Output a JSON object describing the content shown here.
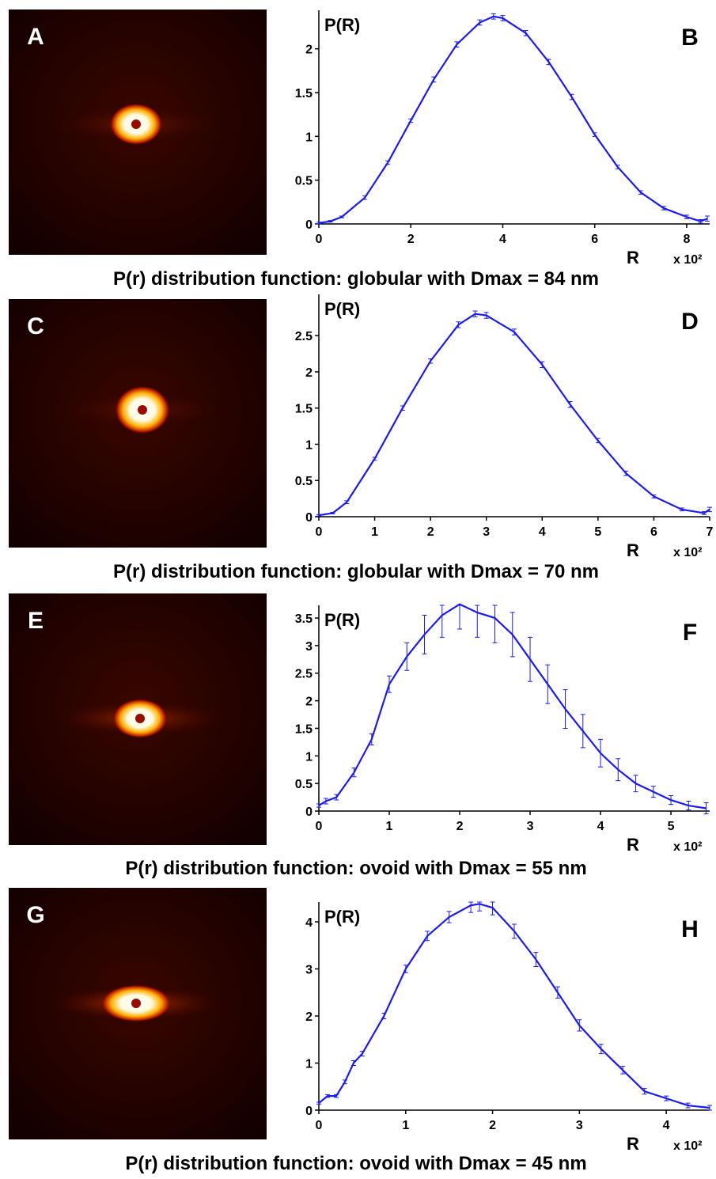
{
  "chart_data": [
    {
      "type": "line",
      "image_label": "A",
      "panel_label": "B",
      "ylabel": "P(R)",
      "xlabel": "R",
      "x_scale": "x 10²",
      "caption": "P(r) distribution function: globular with Dmax = 84 nm",
      "xlim": [
        0,
        8.5
      ],
      "ylim": [
        0,
        2.44
      ],
      "xticks": [
        0,
        2,
        4,
        6,
        8
      ],
      "yticks": [
        0,
        0.5,
        1,
        1.5,
        2
      ],
      "x": [
        0,
        0.25,
        0.5,
        1,
        1.5,
        2,
        2.5,
        3,
        3.5,
        3.8,
        4,
        4.5,
        5,
        5.5,
        6,
        6.5,
        7,
        7.5,
        8,
        8.3,
        8.45
      ],
      "series": [
        {
          "color": "#1a1aff",
          "values": [
            0.01,
            0.03,
            0.08,
            0.3,
            0.7,
            1.18,
            1.65,
            2.05,
            2.3,
            2.37,
            2.35,
            2.18,
            1.85,
            1.45,
            1.02,
            0.65,
            0.36,
            0.18,
            0.08,
            0.03,
            0.06
          ],
          "errors": [
            0.01,
            0.01,
            0.01,
            0.02,
            0.02,
            0.02,
            0.03,
            0.03,
            0.03,
            0.03,
            0.03,
            0.03,
            0.03,
            0.03,
            0.02,
            0.02,
            0.02,
            0.02,
            0.02,
            0.02,
            0.03
          ]
        }
      ]
    },
    {
      "type": "line",
      "image_label": "C",
      "panel_label": "D",
      "ylabel": "P(R)",
      "xlabel": "R",
      "x_scale": "x 10²",
      "caption": "P(r) distribution function: globular with Dmax = 70 nm",
      "xlim": [
        0,
        7
      ],
      "ylim": [
        0,
        3.07
      ],
      "xticks": [
        0,
        1,
        2,
        3,
        4,
        5,
        6,
        7
      ],
      "yticks": [
        0,
        0.5,
        1,
        1.5,
        2,
        2.5
      ],
      "x": [
        0,
        0.25,
        0.5,
        1,
        1.5,
        2,
        2.5,
        2.8,
        3,
        3.5,
        4,
        4.5,
        5,
        5.5,
        6,
        6.5,
        6.9,
        7
      ],
      "series": [
        {
          "color": "#1a1aff",
          "values": [
            0.02,
            0.05,
            0.2,
            0.8,
            1.5,
            2.15,
            2.65,
            2.8,
            2.78,
            2.55,
            2.1,
            1.55,
            1.05,
            0.6,
            0.28,
            0.1,
            0.05,
            0.1
          ],
          "errors": [
            0.01,
            0.01,
            0.02,
            0.02,
            0.03,
            0.03,
            0.04,
            0.04,
            0.04,
            0.04,
            0.04,
            0.04,
            0.03,
            0.03,
            0.02,
            0.02,
            0.02,
            0.03
          ]
        }
      ]
    },
    {
      "type": "line",
      "image_label": "E",
      "panel_label": "F",
      "ylabel": "P(R)",
      "xlabel": "R",
      "x_scale": "x 10²",
      "caption": "P(r) distribution function: ovoid with Dmax = 55 nm",
      "xlim": [
        0,
        5.55
      ],
      "ylim": [
        0,
        3.73
      ],
      "xticks": [
        0,
        1,
        2,
        3,
        4,
        5
      ],
      "yticks": [
        0,
        0.5,
        1,
        1.5,
        2,
        2.5,
        3,
        3.5
      ],
      "x": [
        0,
        0.1,
        0.25,
        0.5,
        0.75,
        1,
        1.25,
        1.5,
        1.75,
        2,
        2.25,
        2.5,
        2.75,
        3,
        3.25,
        3.5,
        3.75,
        4,
        4.25,
        4.5,
        4.75,
        5,
        5.25,
        5.5
      ],
      "series": [
        {
          "color": "#1a1aff",
          "values": [
            0.1,
            0.18,
            0.25,
            0.7,
            1.3,
            2.3,
            2.8,
            3.2,
            3.55,
            3.75,
            3.6,
            3.5,
            3.2,
            2.75,
            2.3,
            1.85,
            1.45,
            1.05,
            0.75,
            0.5,
            0.35,
            0.2,
            0.1,
            0.05
          ],
          "errors": [
            0.03,
            0.05,
            0.05,
            0.08,
            0.1,
            0.15,
            0.25,
            0.35,
            0.4,
            0.45,
            0.45,
            0.45,
            0.4,
            0.4,
            0.35,
            0.35,
            0.3,
            0.25,
            0.2,
            0.15,
            0.1,
            0.08,
            0.08,
            0.1
          ]
        }
      ]
    },
    {
      "type": "line",
      "image_label": "G",
      "panel_label": "H",
      "ylabel": "P(R)",
      "xlabel": "R",
      "x_scale": "x 10²",
      "caption": "P(r) distribution function: ovoid with Dmax = 45 nm",
      "xlim": [
        0,
        4.5
      ],
      "ylim": [
        0,
        4.42
      ],
      "xticks": [
        0,
        1,
        2,
        3,
        4
      ],
      "yticks": [
        0,
        1,
        2,
        3,
        4
      ],
      "x": [
        0,
        0.1,
        0.2,
        0.3,
        0.4,
        0.5,
        0.75,
        1,
        1.25,
        1.5,
        1.75,
        1.85,
        2,
        2.25,
        2.5,
        2.75,
        3,
        3.25,
        3.5,
        3.75,
        4,
        4.25,
        4.5
      ],
      "series": [
        {
          "color": "#1a1aff",
          "values": [
            0.15,
            0.3,
            0.3,
            0.6,
            1.0,
            1.2,
            2.0,
            3.0,
            3.7,
            4.1,
            4.35,
            4.38,
            4.3,
            3.8,
            3.2,
            2.5,
            1.8,
            1.3,
            0.85,
            0.4,
            0.25,
            0.1,
            0.05
          ],
          "errors": [
            0.02,
            0.03,
            0.03,
            0.04,
            0.05,
            0.05,
            0.06,
            0.08,
            0.1,
            0.12,
            0.15,
            0.15,
            0.15,
            0.15,
            0.15,
            0.12,
            0.12,
            0.1,
            0.08,
            0.06,
            0.05,
            0.05,
            0.05
          ]
        }
      ]
    }
  ]
}
